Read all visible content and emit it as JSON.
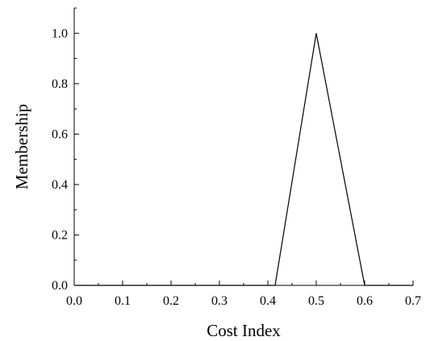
{
  "chart_data": {
    "type": "line",
    "xlabel": "Cost Index",
    "ylabel": "Membership",
    "xlim": [
      0.0,
      0.7
    ],
    "ylim": [
      0.0,
      1.1
    ],
    "grid": false,
    "x_ticks": [
      "0.0",
      "0.1",
      "0.2",
      "0.3",
      "0.4",
      "0.5",
      "0.6",
      "0.7"
    ],
    "y_ticks": [
      "0.0",
      "0.2",
      "0.4",
      "0.6",
      "0.8",
      "1.0"
    ],
    "series": [
      {
        "x": [
          0.0,
          0.415,
          0.5,
          0.6,
          0.7
        ],
        "y": [
          0.0,
          0.0,
          1.0,
          0.0,
          0.0
        ]
      }
    ],
    "colors": {
      "line": "#000000",
      "axes": "#000000"
    }
  }
}
